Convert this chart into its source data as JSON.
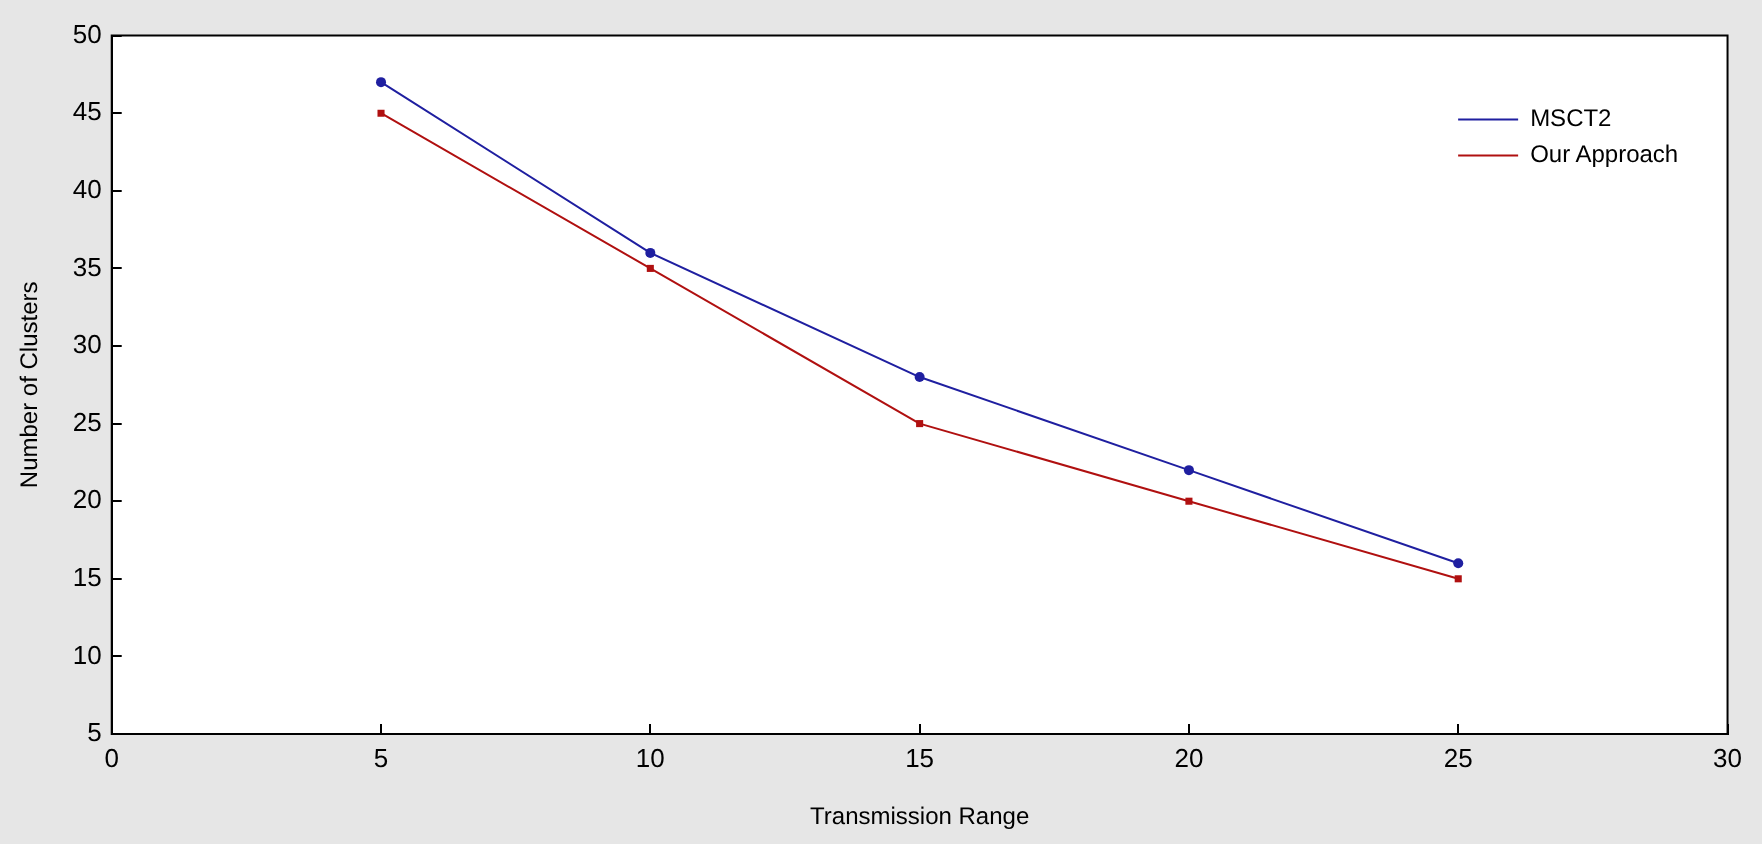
{
  "chart_data": {
    "type": "line",
    "xlabel": "Transmission Range",
    "ylabel": "Number of Clusters",
    "x": [
      5,
      10,
      15,
      20,
      25
    ],
    "series": [
      {
        "name": "MSCT2",
        "color": "#1f1fa0",
        "values": [
          47,
          36,
          28,
          22,
          16
        ],
        "marker": "circle"
      },
      {
        "name": "Our Approach",
        "color": "#b01010",
        "values": [
          45,
          35,
          25,
          20,
          15
        ],
        "marker": "square"
      }
    ],
    "xlim": [
      0,
      30
    ],
    "xticks": [
      0,
      5,
      10,
      15,
      20,
      25,
      30
    ],
    "ylim": [
      5,
      50
    ],
    "yticks": [
      5,
      10,
      15,
      20,
      25,
      30,
      35,
      40,
      45,
      50
    ],
    "grid": false,
    "legend": "top right",
    "line_style": "solid"
  }
}
